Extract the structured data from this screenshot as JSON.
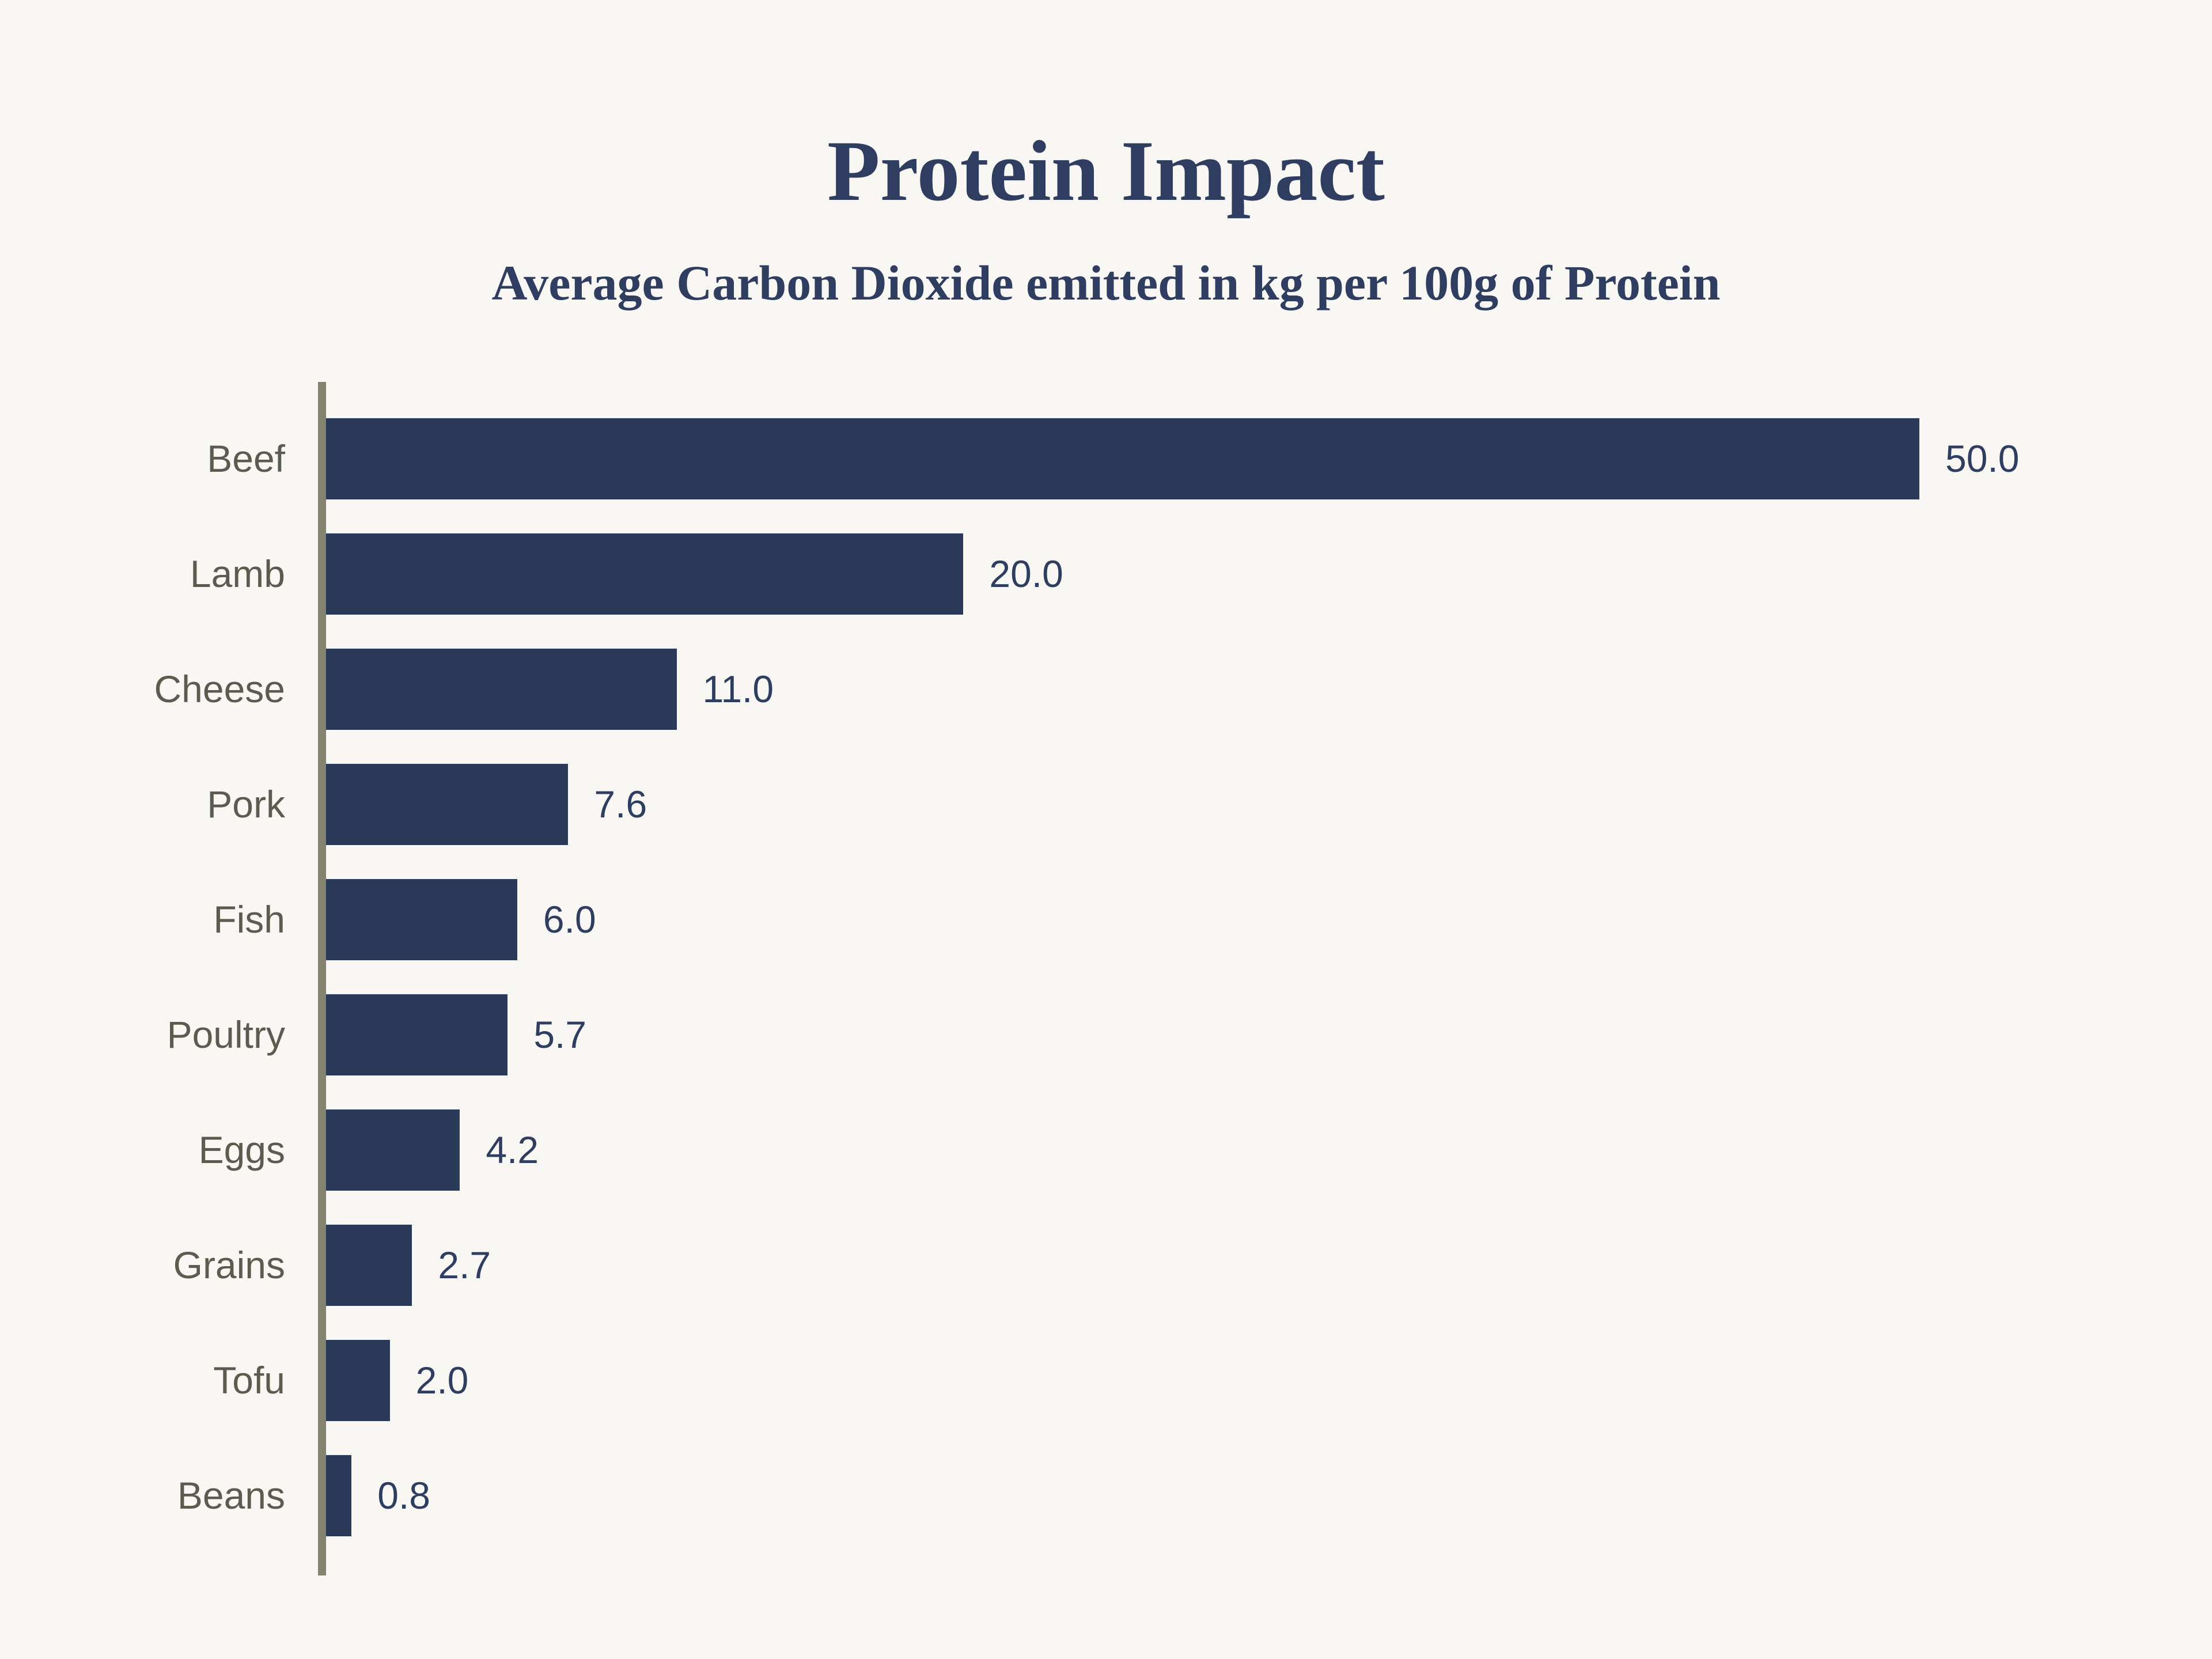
{
  "header": {
    "title": "Protein Impact",
    "subtitle": "Average Carbon Dioxide emitted in kg per 100g of Protein"
  },
  "chart_data": {
    "type": "bar",
    "orientation": "horizontal",
    "title": "Protein Impact",
    "subtitle": "Average Carbon Dioxide emitted in kg per 100g of Protein",
    "categories": [
      "Beef",
      "Lamb",
      "Cheese",
      "Pork",
      "Fish",
      "Poultry",
      "Eggs",
      "Grains",
      "Tofu",
      "Beans"
    ],
    "values": [
      50.0,
      20.0,
      11.0,
      7.6,
      6.0,
      5.7,
      4.2,
      2.7,
      2.0,
      0.8
    ],
    "value_labels": [
      "50.0",
      "20.0",
      "11.0",
      "7.6",
      "6.0",
      "5.7",
      "4.2",
      "2.7",
      "2.0",
      "0.8"
    ],
    "xlim": [
      0,
      50
    ],
    "grid": false,
    "legend": false,
    "colors": {
      "background": "#F8F7F4",
      "bar": "#2B3A58",
      "axis_line": "#84836D",
      "category_label": "#5C5B4F",
      "value_label": "#2E3D60",
      "title": "#2E3D60"
    }
  }
}
